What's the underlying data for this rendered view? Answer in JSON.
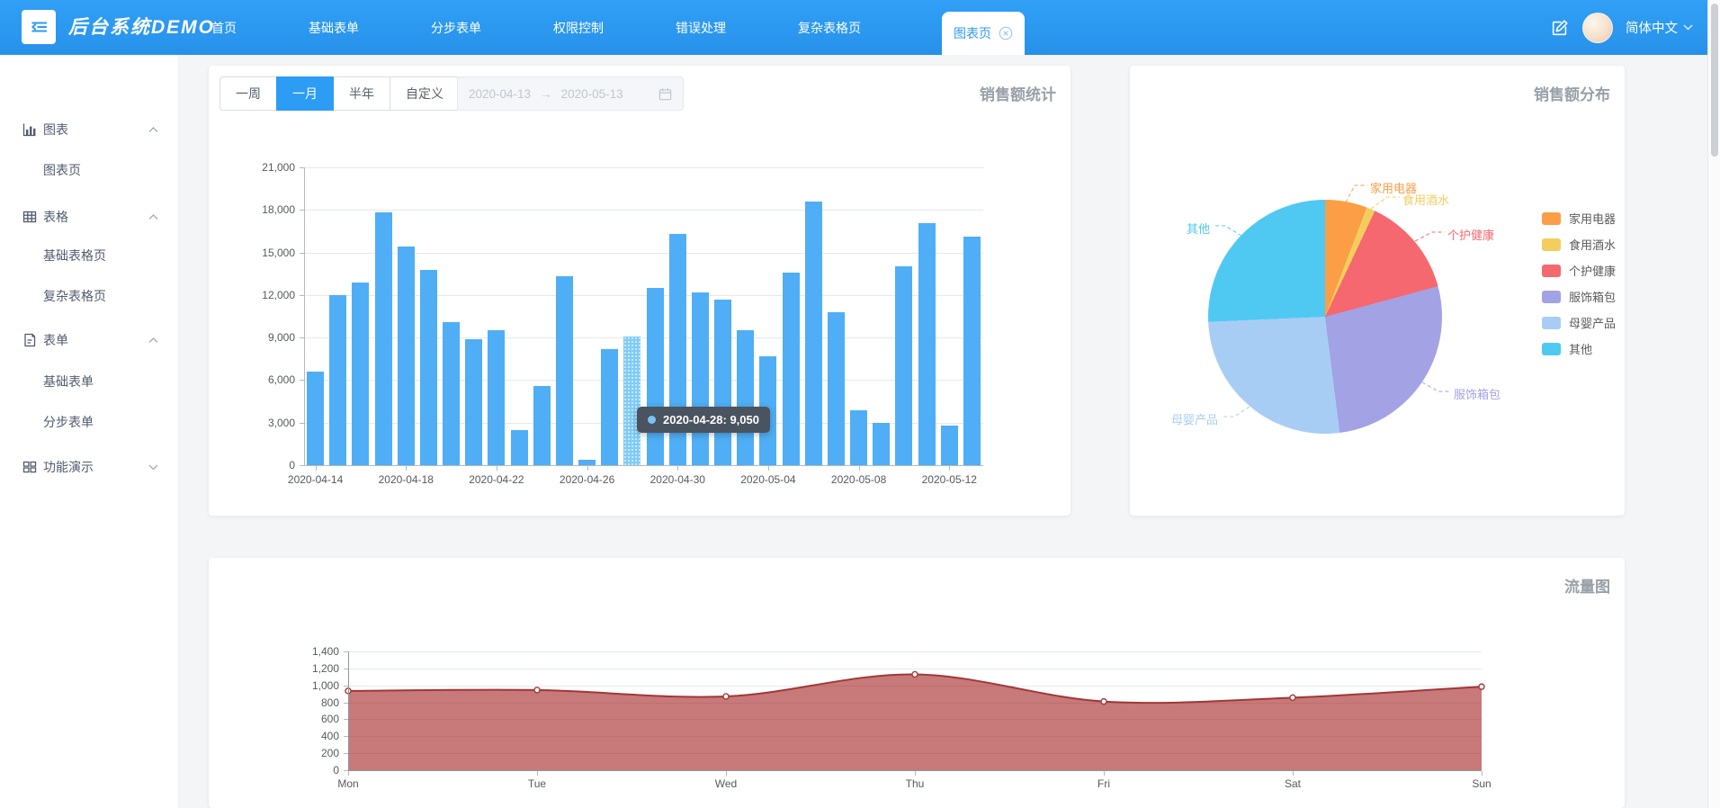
{
  "header": {
    "logo": "后台系统DEMO",
    "nav": [
      "首页",
      "基础表单",
      "分步表单",
      "权限控制",
      "错误处理",
      "复杂表格页"
    ],
    "active_tab": "图表页",
    "language": "简体中文"
  },
  "sidebar": {
    "items": [
      {
        "label": "图表",
        "icon": "bar-chart-icon",
        "type": "group",
        "expanded": true
      },
      {
        "label": "图表页",
        "type": "child"
      },
      {
        "label": "表格",
        "icon": "table-icon",
        "type": "group",
        "expanded": true
      },
      {
        "label": "基础表格页",
        "type": "child"
      },
      {
        "label": "复杂表格页",
        "type": "child"
      },
      {
        "label": "表单",
        "icon": "form-icon",
        "type": "group",
        "expanded": true
      },
      {
        "label": "基础表单",
        "type": "child"
      },
      {
        "label": "分步表单",
        "type": "child"
      },
      {
        "label": "功能演示",
        "icon": "grid-icon",
        "type": "group",
        "expanded": false
      }
    ]
  },
  "toolbar": {
    "range_buttons": [
      "一周",
      "一月",
      "半年",
      "自定义"
    ],
    "active_button": "一月",
    "date_start": "2020-04-13",
    "date_separator": "→",
    "date_end": "2020-05-13"
  },
  "theme": {
    "header_blue": "#2C9BF4",
    "bar_blue": "#4FAEF5",
    "bar_highlight": "#7ECBF8",
    "tooltip_bg": "#4A5360",
    "area_line": "#A23737",
    "area_fill": "rgba(167,39,39,0.62)"
  },
  "chart_data": [
    {
      "type": "bar",
      "title": "销售额统计",
      "x": [
        "2020-04-14",
        "2020-04-15",
        "2020-04-16",
        "2020-04-17",
        "2020-04-18",
        "2020-04-19",
        "2020-04-20",
        "2020-04-21",
        "2020-04-22",
        "2020-04-23",
        "2020-04-24",
        "2020-04-25",
        "2020-04-26",
        "2020-04-27",
        "2020-04-28",
        "2020-04-29",
        "2020-04-30",
        "2020-05-01",
        "2020-05-02",
        "2020-05-03",
        "2020-05-04",
        "2020-05-05",
        "2020-05-06",
        "2020-05-07",
        "2020-05-08",
        "2020-05-09",
        "2020-05-10",
        "2020-05-11",
        "2020-05-12",
        "2020-05-13"
      ],
      "values": [
        6600,
        12000,
        12900,
        17800,
        15400,
        13800,
        10100,
        8900,
        9500,
        2500,
        5600,
        13300,
        400,
        8200,
        9050,
        12500,
        16300,
        12200,
        11700,
        9500,
        7700,
        13600,
        18600,
        10800,
        3900,
        3000,
        14000,
        17100,
        2800,
        16100
      ],
      "highlight_index": 14,
      "tooltip": {
        "date": "2020-04-28",
        "value": 9050,
        "text": "2020-04-28: 9,050"
      },
      "ylim": [
        0,
        21000
      ],
      "yticks": [
        0,
        3000,
        6000,
        9000,
        12000,
        15000,
        18000,
        21000
      ],
      "xtick_every": 4,
      "xtick_labels": [
        "2020-04-14",
        "2020-04-18",
        "2020-04-22",
        "2020-04-26",
        "2020-04-30",
        "2020-05-04",
        "2020-05-08",
        "2020-05-12"
      ],
      "grid": true,
      "bar_color": "#4FAEF5",
      "highlight_color": "#7ECBF8"
    },
    {
      "type": "pie",
      "title": "销售额分布",
      "labels": [
        "家用电器",
        "食用酒水",
        "个护健康",
        "服饰箱包",
        "母婴产品",
        "其他"
      ],
      "values_percent": [
        5.8,
        1.2,
        13.8,
        27.2,
        26.3,
        25.7
      ],
      "colors": [
        "#FB9E45",
        "#F3CE5E",
        "#F5686F",
        "#A2A2E5",
        "#A8CDF5",
        "#4FC9F2"
      ],
      "legend_position": "right",
      "start_angle_deg": 0
    },
    {
      "type": "area",
      "title": "流量图",
      "x": [
        "Mon",
        "Tue",
        "Wed",
        "Thu",
        "Fri",
        "Sat",
        "Sun"
      ],
      "values": [
        935,
        945,
        870,
        1130,
        810,
        855,
        985
      ],
      "ylim": [
        0,
        1400
      ],
      "yticks": [
        0,
        200,
        400,
        600,
        800,
        1000,
        1200,
        1400
      ],
      "grid": true,
      "line_color": "#A23737",
      "fill_color": "rgba(167,39,39,0.62)",
      "markers": "white-dot"
    }
  ]
}
